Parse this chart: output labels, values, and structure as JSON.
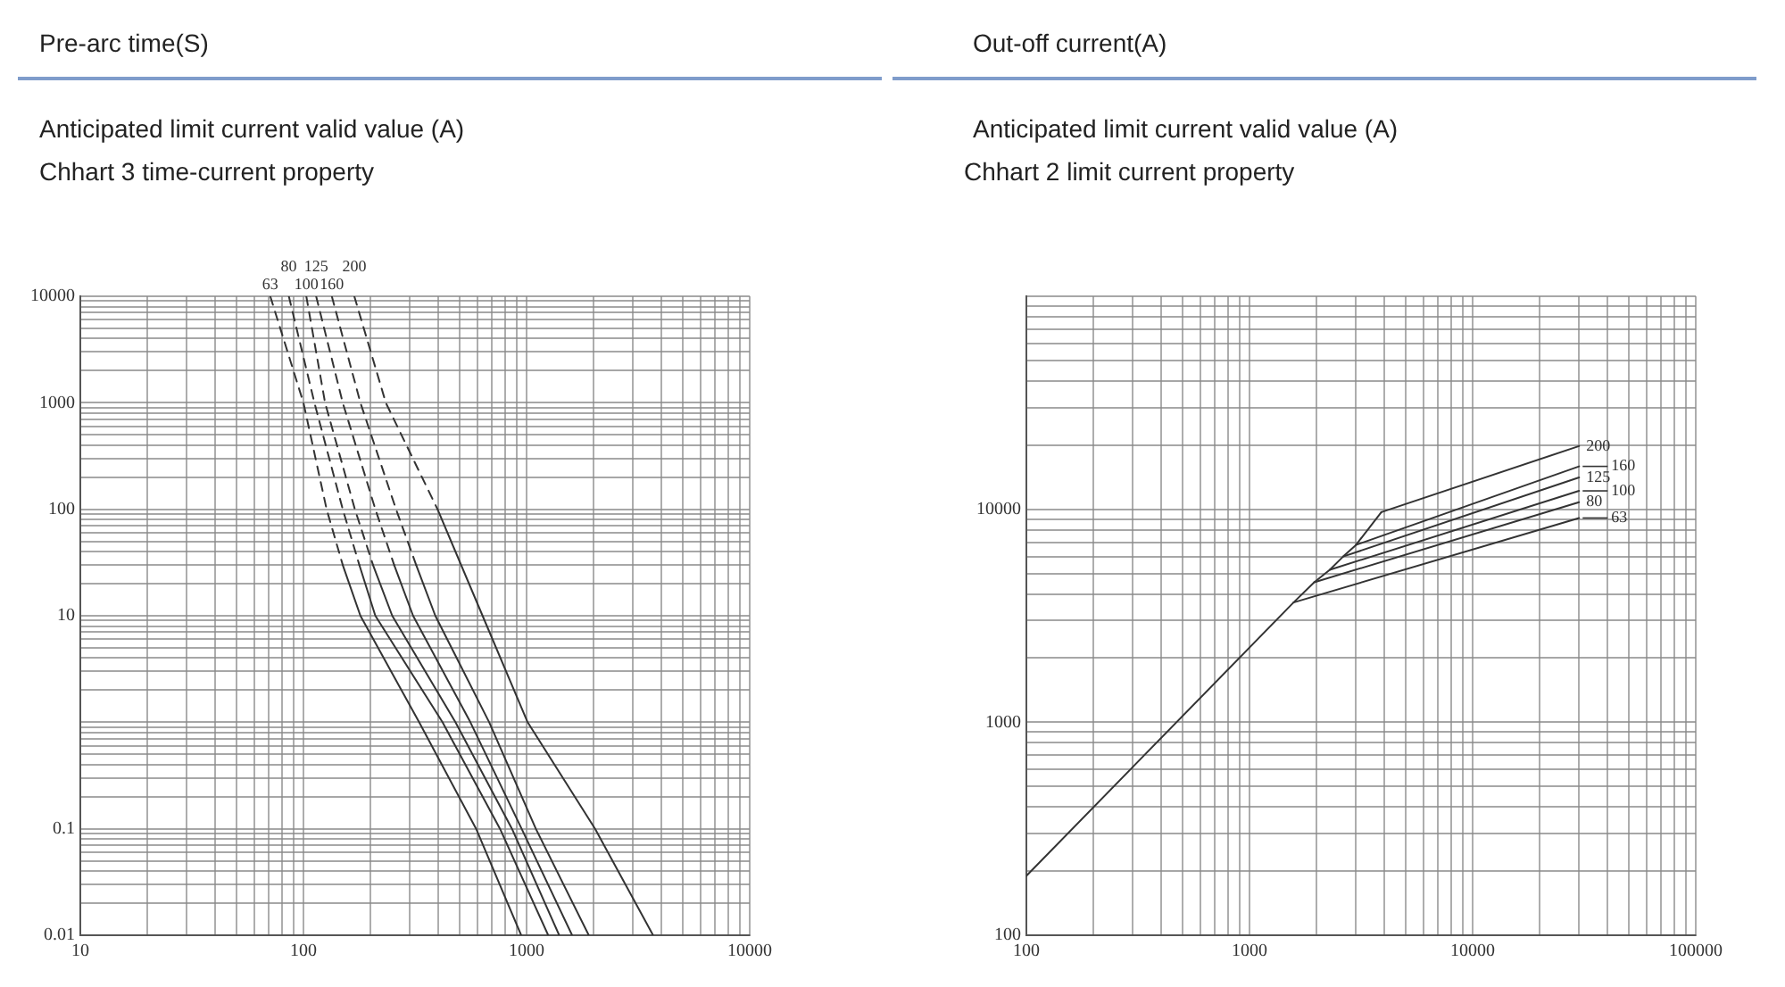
{
  "chart_data": [
    {
      "type": "line",
      "title": "Chhart 3 time-current property",
      "xlabel": "Anticipated limit current valid value (A)",
      "annotations": [
        "Pre-arc time(S)"
      ],
      "log": "xy",
      "grid": true,
      "legend": false,
      "marker": "none",
      "xlim": [
        10,
        10000
      ],
      "ylim": [
        0.01,
        10000
      ],
      "xticks": [
        10,
        {
          "value": 20,
          "label": null
        },
        {
          "value": 30,
          "label": null
        },
        {
          "value": 40,
          "label": null
        },
        {
          "value": 50,
          "label": null
        },
        {
          "value": 60,
          "label": null
        },
        {
          "value": 70,
          "label": null
        },
        {
          "value": 80,
          "label": null
        },
        {
          "value": 90,
          "label": null
        },
        100,
        {
          "value": 200,
          "label": null
        },
        {
          "value": 300,
          "label": null
        },
        {
          "value": 400,
          "label": null
        },
        {
          "value": 500,
          "label": null
        },
        {
          "value": 600,
          "label": null
        },
        {
          "value": 700,
          "label": null
        },
        {
          "value": 800,
          "label": null
        },
        {
          "value": 900,
          "label": null
        },
        1000,
        {
          "value": 2000,
          "label": null
        },
        {
          "value": 3000,
          "label": null
        },
        {
          "value": 4000,
          "label": null
        },
        {
          "value": 5000,
          "label": null
        },
        {
          "value": 6000,
          "label": null
        },
        {
          "value": 7000,
          "label": null
        },
        {
          "value": 8000,
          "label": null
        },
        {
          "value": 9000,
          "label": null
        },
        10000
      ],
      "yticks": [
        0.01,
        {
          "value": 0.02,
          "label": null
        },
        {
          "value": 0.03,
          "label": null
        },
        {
          "value": 0.04,
          "label": null
        },
        {
          "value": 0.05,
          "label": null
        },
        {
          "value": 0.06,
          "label": null
        },
        {
          "value": 0.07,
          "label": null
        },
        {
          "value": 0.08,
          "label": null
        },
        {
          "value": 0.09,
          "label": null
        },
        0.1,
        {
          "value": 0.2,
          "label": null
        },
        {
          "value": 0.3,
          "label": null
        },
        {
          "value": 0.4,
          "label": null
        },
        {
          "value": 0.5,
          "label": null
        },
        {
          "value": 0.6,
          "label": null
        },
        {
          "value": 0.7,
          "label": null
        },
        {
          "value": 0.8,
          "label": null
        },
        {
          "value": 0.9,
          "label": null
        },
        {
          "value": 1,
          "label": null
        },
        {
          "value": 2,
          "label": null
        },
        {
          "value": 3,
          "label": null
        },
        {
          "value": 4,
          "label": null
        },
        {
          "value": 5,
          "label": null
        },
        {
          "value": 6,
          "label": null
        },
        {
          "value": 7,
          "label": null
        },
        {
          "value": 8,
          "label": null
        },
        {
          "value": 9,
          "label": null
        },
        10,
        {
          "value": 20,
          "label": null
        },
        {
          "value": 30,
          "label": null
        },
        {
          "value": 40,
          "label": null
        },
        {
          "value": 50,
          "label": null
        },
        {
          "value": 60,
          "label": null
        },
        {
          "value": 70,
          "label": null
        },
        {
          "value": 80,
          "label": null
        },
        {
          "value": 90,
          "label": null
        },
        100,
        {
          "value": 200,
          "label": null
        },
        {
          "value": 300,
          "label": null
        },
        {
          "value": 400,
          "label": null
        },
        {
          "value": 500,
          "label": null
        },
        {
          "value": 600,
          "label": null
        },
        {
          "value": 700,
          "label": null
        },
        {
          "value": 800,
          "label": null
        },
        {
          "value": 900,
          "label": null
        },
        1000,
        {
          "value": 2000,
          "label": null
        },
        {
          "value": 3000,
          "label": null
        },
        {
          "value": 4000,
          "label": null
        },
        {
          "value": 5000,
          "label": null
        },
        {
          "value": 6000,
          "label": null
        },
        {
          "value": 7000,
          "label": null
        },
        {
          "value": 8000,
          "label": null
        },
        {
          "value": 9000,
          "label": null
        },
        10000
      ],
      "series": [
        {
          "name": "63",
          "color": "#333333",
          "line_style": "dashed",
          "x": [
            71,
            100,
            127,
            150
          ],
          "values": [
            10000,
            1000,
            100,
            30
          ]
        },
        {
          "name": "80",
          "color": "#333333",
          "line_style": "dashed",
          "x": [
            86,
            112,
            150,
            178
          ],
          "values": [
            10000,
            1000,
            100,
            30
          ]
        },
        {
          "name": "100",
          "color": "#333333",
          "line_style": "dashed",
          "x": [
            103,
            125,
            170,
            205
          ],
          "values": [
            10000,
            1000,
            100,
            30
          ]
        },
        {
          "name": "125",
          "color": "#333333",
          "line_style": "dashed",
          "x": [
            114,
            150,
            210,
            255
          ],
          "values": [
            10000,
            1000,
            100,
            30
          ]
        },
        {
          "name": "160",
          "color": "#333333",
          "line_style": "dashed",
          "x": [
            134,
            180,
            260,
            320
          ],
          "values": [
            10000,
            1000,
            100,
            30
          ]
        },
        {
          "name": "200",
          "color": "#333333",
          "line_style": "dashed",
          "x": [
            169,
            234,
            399
          ],
          "values": [
            10000,
            1000,
            100
          ]
        },
        {
          "color": "#333333",
          "line_style": "solid",
          "x": [
            150,
            180,
            330,
            594,
            946
          ],
          "values": [
            30,
            10,
            1,
            0.1,
            0.01
          ]
        },
        {
          "color": "#333333",
          "line_style": "solid",
          "x": [
            178,
            210,
            420,
            760,
            1250
          ],
          "values": [
            30,
            10,
            1,
            0.1,
            0.01
          ]
        },
        {
          "color": "#333333",
          "line_style": "solid",
          "x": [
            205,
            250,
            480,
            860,
            1400
          ],
          "values": [
            30,
            10,
            1,
            0.1,
            0.01
          ]
        },
        {
          "color": "#333333",
          "line_style": "solid",
          "x": [
            255,
            310,
            560,
            950,
            1600
          ],
          "values": [
            30,
            10,
            1,
            0.1,
            0.01
          ]
        },
        {
          "color": "#333333",
          "line_style": "solid",
          "x": [
            320,
            390,
            680,
            1100,
            1900
          ],
          "values": [
            30,
            10,
            1,
            0.1,
            0.01
          ]
        },
        {
          "color": "#333333",
          "line_style": "solid",
          "x": [
            399,
            635,
            1011,
            2028,
            3690
          ],
          "values": [
            100,
            10,
            1,
            0.1,
            0.01
          ]
        }
      ]
    },
    {
      "type": "line",
      "title": "Chhart 2 limit current property",
      "xlabel": "Anticipated limit current valid value (A)",
      "annotations": [
        "Out-off current(A)"
      ],
      "log": "xy",
      "grid": true,
      "legend": false,
      "marker": "none",
      "xlim": [
        100,
        100000
      ],
      "ylim": [
        100,
        100000
      ],
      "xticks": [
        100,
        {
          "value": 200,
          "label": null
        },
        {
          "value": 300,
          "label": null
        },
        {
          "value": 400,
          "label": null
        },
        {
          "value": 500,
          "label": null
        },
        {
          "value": 600,
          "label": null
        },
        {
          "value": 700,
          "label": null
        },
        {
          "value": 800,
          "label": null
        },
        {
          "value": 900,
          "label": null
        },
        1000,
        {
          "value": 2000,
          "label": null
        },
        {
          "value": 3000,
          "label": null
        },
        {
          "value": 4000,
          "label": null
        },
        {
          "value": 5000,
          "label": null
        },
        {
          "value": 6000,
          "label": null
        },
        {
          "value": 7000,
          "label": null
        },
        {
          "value": 8000,
          "label": null
        },
        {
          "value": 9000,
          "label": null
        },
        10000,
        {
          "value": 20000,
          "label": null
        },
        {
          "value": 30000,
          "label": null
        },
        {
          "value": 40000,
          "label": null
        },
        {
          "value": 50000,
          "label": null
        },
        {
          "value": 60000,
          "label": null
        },
        {
          "value": 70000,
          "label": null
        },
        {
          "value": 80000,
          "label": null
        },
        {
          "value": 90000,
          "label": null
        },
        100000
      ],
      "yticks": [
        100,
        {
          "value": 200,
          "label": null
        },
        {
          "value": 300,
          "label": null
        },
        {
          "value": 400,
          "label": null
        },
        {
          "value": 500,
          "label": null
        },
        {
          "value": 600,
          "label": null
        },
        {
          "value": 700,
          "label": null
        },
        {
          "value": 800,
          "label": null
        },
        {
          "value": 900,
          "label": null
        },
        1000,
        {
          "value": 2000,
          "label": null
        },
        {
          "value": 3000,
          "label": null
        },
        {
          "value": 4000,
          "label": null
        },
        {
          "value": 5000,
          "label": null
        },
        {
          "value": 6000,
          "label": null
        },
        {
          "value": 7000,
          "label": null
        },
        {
          "value": 8000,
          "label": null
        },
        {
          "value": 9000,
          "label": null
        },
        10000,
        {
          "value": 20000,
          "label": null
        },
        {
          "value": 30000,
          "label": null
        },
        {
          "value": 40000,
          "label": null
        },
        {
          "value": 50000,
          "label": null
        },
        {
          "value": 60000,
          "label": null
        },
        {
          "value": 70000,
          "label": null
        },
        {
          "value": 80000,
          "label": null
        },
        {
          "value": 90000,
          "label": null
        },
        {
          "value": 100000,
          "label": null
        }
      ],
      "series": [
        {
          "color": "#333333",
          "x": [
            100,
            1575,
            1950,
            2290,
            2630,
            3000,
            3900
          ],
          "values": [
            190,
            3650,
            4540,
            5200,
            6000,
            6800,
            9700
          ]
        },
        {
          "name": "200",
          "color": "#333333",
          "x": [
            3900,
            30000
          ],
          "values": [
            9700,
            19800
          ]
        },
        {
          "name": "160",
          "color": "#333333",
          "x": [
            3000,
            30000
          ],
          "values": [
            6800,
            15900
          ]
        },
        {
          "name": "125",
          "color": "#333333",
          "x": [
            2630,
            30000
          ],
          "values": [
            6000,
            14100
          ]
        },
        {
          "name": "100",
          "color": "#333333",
          "x": [
            2290,
            30000
          ],
          "values": [
            5200,
            12200
          ]
        },
        {
          "name": "80",
          "color": "#333333",
          "x": [
            1950,
            30000
          ],
          "values": [
            4540,
            10800
          ]
        },
        {
          "name": "63",
          "color": "#333333",
          "x": [
            1575,
            30000
          ],
          "values": [
            3650,
            9100
          ]
        }
      ]
    }
  ]
}
